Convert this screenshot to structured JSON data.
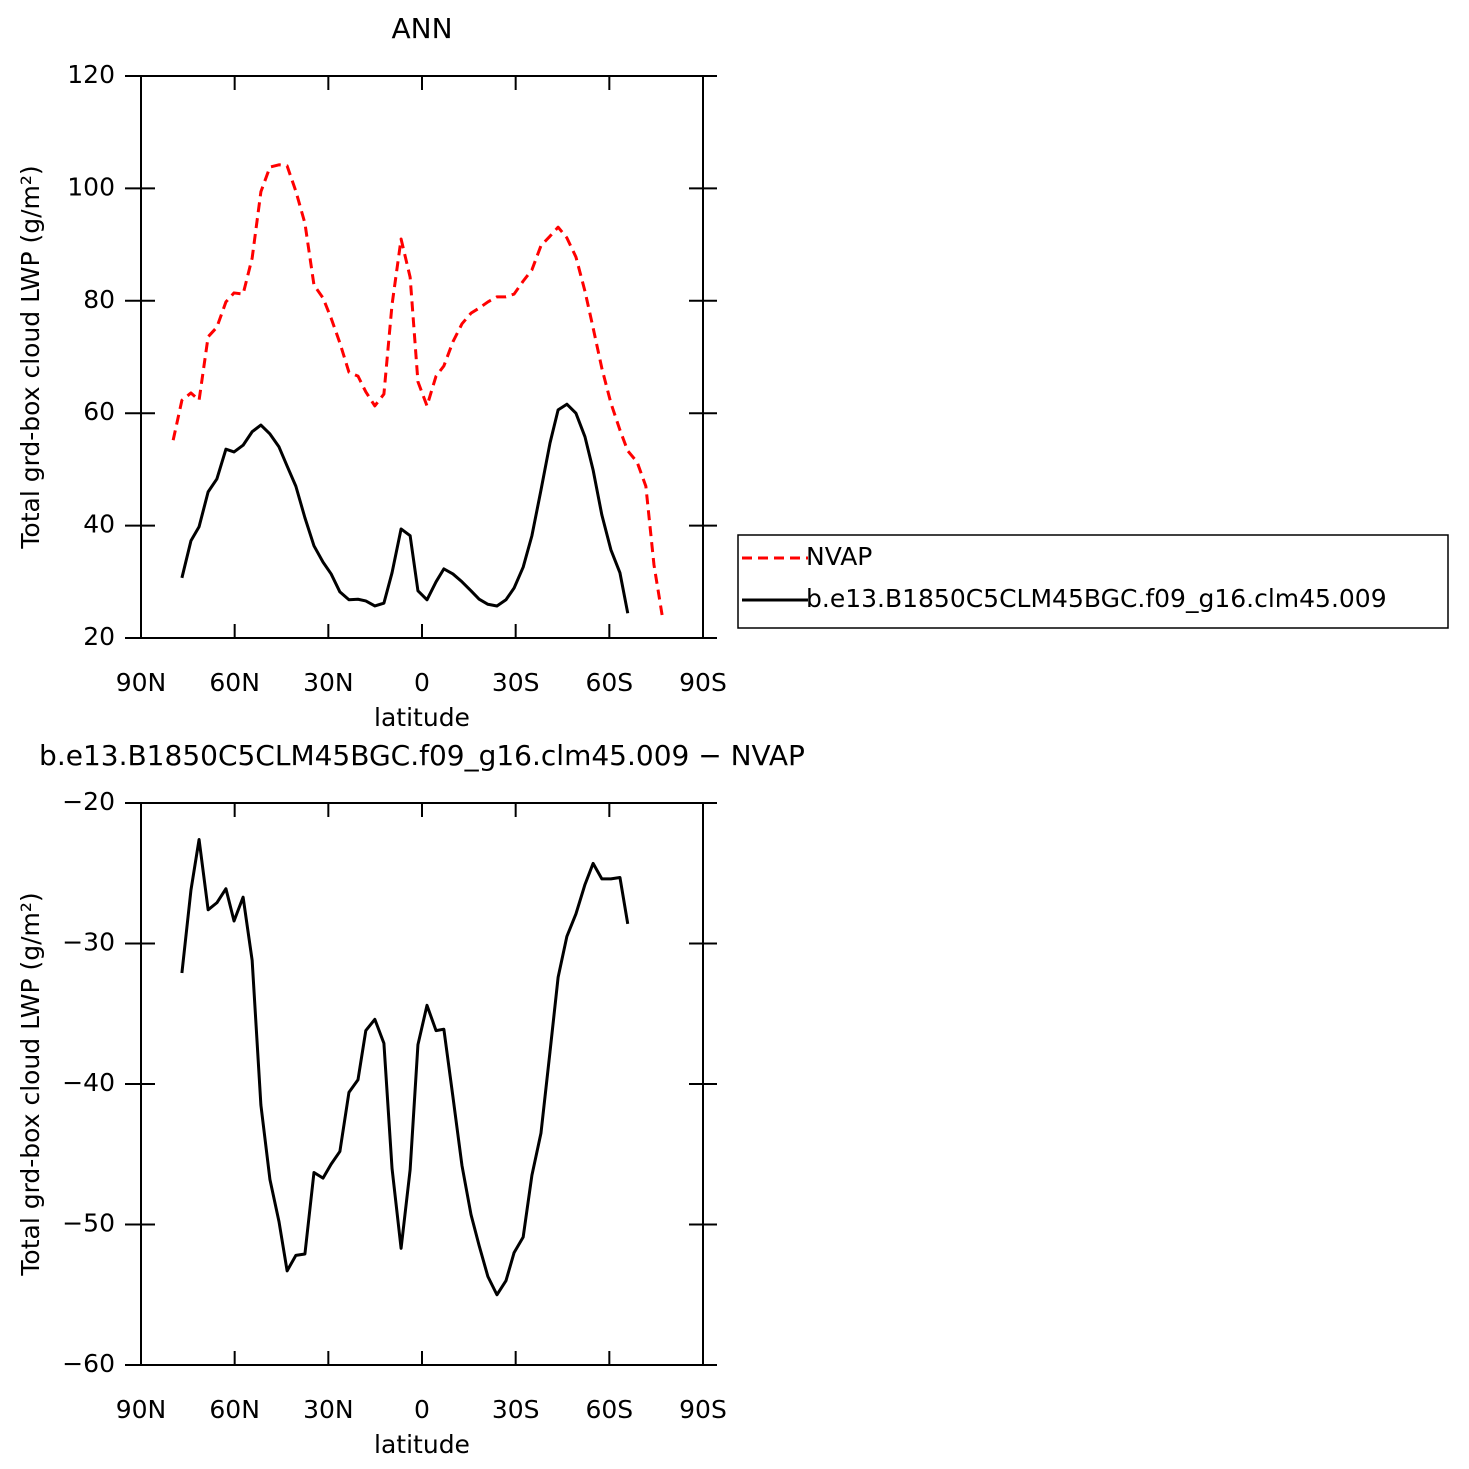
{
  "chart_data": [
    {
      "type": "line",
      "title": "ANN",
      "xlabel": "latitude",
      "ylabel": "Total grd-box cloud LWP (g/m²)",
      "xlim": [
        90,
        -90
      ],
      "xticks": [
        {
          "value": 90,
          "label": "90N"
        },
        {
          "value": 60,
          "label": "60N"
        },
        {
          "value": 30,
          "label": "30N"
        },
        0,
        {
          "value": -30,
          "label": "30S"
        },
        {
          "value": -60,
          "label": "60S"
        },
        {
          "value": -90,
          "label": "90S"
        }
      ],
      "ylim": [
        20,
        120
      ],
      "yticks": [
        20,
        40,
        60,
        80,
        100,
        120
      ],
      "legend": "outside right",
      "series": [
        {
          "name": "NVAP",
          "color": "#ff0000",
          "linestyle": "dashed",
          "x": [
            79.7,
            76.9,
            74.0,
            71.4,
            68.5,
            65.7,
            62.8,
            60.2,
            57.3,
            54.4,
            51.6,
            48.7,
            45.8,
            43.2,
            40.4,
            37.5,
            34.6,
            31.7,
            29.1,
            26.3,
            23.4,
            20.5,
            18.0,
            15.1,
            12.2,
            9.6,
            6.7,
            3.8,
            1.3,
            -1.6,
            -4.5,
            -7.0,
            -9.9,
            -12.8,
            -15.7,
            -18.3,
            -21.1,
            -24.0,
            -26.9,
            -29.5,
            -32.4,
            -35.2,
            -38.1,
            -41.0,
            -43.6,
            -46.4,
            -49.3,
            -52.2,
            -54.8,
            -57.6,
            -60.5,
            -63.4,
            -65.9,
            -68.9,
            -71.7,
            -74.3,
            -76.9
          ],
          "values": [
            55.2,
            62.3,
            63.6,
            62.3,
            73.6,
            75.3,
            79.8,
            81.4,
            81.2,
            87.6,
            99.4,
            103.8,
            104.2,
            104.0,
            99.5,
            93.8,
            82.8,
            80.5,
            76.9,
            72.5,
            67.3,
            66.6,
            63.8,
            61.3,
            63.4,
            79.3,
            91.0,
            84.2,
            65.6,
            61.3,
            66.6,
            68.4,
            72.7,
            75.9,
            77.8,
            78.7,
            79.8,
            80.7,
            80.7,
            81.2,
            83.5,
            85.5,
            89.8,
            91.5,
            93.1,
            91.2,
            87.8,
            81.7,
            75.2,
            68.0,
            61.8,
            57.0,
            53.3,
            51.3,
            47.0,
            33.0,
            24.1
          ]
        },
        {
          "name": "b.e13.B1850C5CLM45BGC.f09_g16.clm45.009",
          "color": "#000000",
          "linestyle": "solid",
          "x": [
            76.9,
            74.0,
            71.4,
            68.5,
            65.7,
            62.8,
            60.2,
            57.3,
            54.4,
            51.6,
            48.7,
            45.8,
            43.2,
            40.4,
            37.5,
            34.6,
            31.7,
            29.1,
            26.3,
            23.4,
            20.5,
            18.0,
            15.1,
            12.2,
            9.6,
            6.7,
            3.8,
            1.3,
            -1.6,
            -4.5,
            -7.0,
            -9.9,
            -12.8,
            -15.7,
            -18.3,
            -21.1,
            -24.0,
            -26.9,
            -29.5,
            -32.4,
            -35.2,
            -38.1,
            -41.0,
            -43.6,
            -46.4,
            -49.3,
            -52.2,
            -54.8,
            -57.6,
            -60.5,
            -63.4,
            -65.9
          ],
          "values": [
            30.7,
            37.3,
            39.8,
            46.0,
            48.3,
            53.6,
            53.1,
            54.3,
            56.7,
            57.9,
            56.3,
            54.0,
            50.6,
            47.0,
            41.4,
            36.4,
            33.5,
            31.4,
            28.2,
            26.8,
            26.9,
            26.6,
            25.7,
            26.2,
            31.6,
            39.4,
            38.2,
            28.4,
            26.8,
            30.0,
            32.3,
            31.4,
            30.0,
            28.4,
            26.9,
            26.0,
            25.7,
            26.8,
            28.9,
            32.6,
            38.2,
            46.3,
            54.7,
            60.6,
            61.6,
            60.0,
            55.8,
            49.9,
            41.9,
            35.7,
            31.6,
            24.4
          ]
        }
      ]
    },
    {
      "type": "line",
      "title": "b.e13.B1850C5CLM45BGC.f09_g16.clm45.009 − NVAP",
      "xlabel": "latitude",
      "ylabel": "Total grd-box cloud LWP (g/m²)",
      "xlim": [
        90,
        -90
      ],
      "xticks": [
        {
          "value": 90,
          "label": "90N"
        },
        {
          "value": 60,
          "label": "60N"
        },
        {
          "value": 30,
          "label": "30N"
        },
        0,
        {
          "value": -30,
          "label": "30S"
        },
        {
          "value": -60,
          "label": "60S"
        },
        {
          "value": -90,
          "label": "90S"
        }
      ],
      "ylim": [
        -60,
        -20
      ],
      "yticks": [
        {
          "value": -60,
          "label": "−60"
        },
        {
          "value": -50,
          "label": "−50"
        },
        {
          "value": -40,
          "label": "−40"
        },
        {
          "value": -30,
          "label": "−30"
        },
        {
          "value": -20,
          "label": "−20"
        }
      ],
      "series": [
        {
          "color": "#000000",
          "linestyle": "solid",
          "x": [
            76.9,
            74.0,
            71.4,
            68.5,
            65.7,
            62.8,
            60.2,
            57.3,
            54.4,
            51.6,
            48.7,
            45.8,
            43.2,
            40.4,
            37.5,
            34.6,
            31.7,
            29.1,
            26.3,
            23.4,
            20.5,
            18.0,
            15.1,
            12.2,
            9.6,
            6.7,
            3.8,
            1.3,
            -1.6,
            -4.5,
            -7.0,
            -9.9,
            -12.8,
            -15.7,
            -18.3,
            -21.1,
            -24.0,
            -26.9,
            -29.5,
            -32.4,
            -35.2,
            -38.1,
            -41.0,
            -43.6,
            -46.4,
            -49.3,
            -52.2,
            -54.8,
            -57.6,
            -60.5,
            -63.4,
            -65.9
          ],
          "values": [
            -32.1,
            -26.2,
            -22.6,
            -27.6,
            -27.1,
            -26.1,
            -28.4,
            -26.7,
            -31.2,
            -41.5,
            -46.8,
            -49.8,
            -53.3,
            -52.2,
            -52.1,
            -46.3,
            -46.7,
            -45.7,
            -44.8,
            -40.6,
            -39.7,
            -36.2,
            -35.4,
            -37.1,
            -46.0,
            -51.7,
            -46.1,
            -37.2,
            -34.4,
            -36.2,
            -36.1,
            -40.9,
            -45.8,
            -49.3,
            -51.5,
            -53.7,
            -55.0,
            -54.0,
            -52.0,
            -50.9,
            -46.5,
            -43.5,
            -37.7,
            -32.4,
            -29.5,
            -27.9,
            -25.8,
            -24.3,
            -25.4,
            -25.4,
            -25.3,
            -28.6
          ]
        }
      ]
    }
  ]
}
